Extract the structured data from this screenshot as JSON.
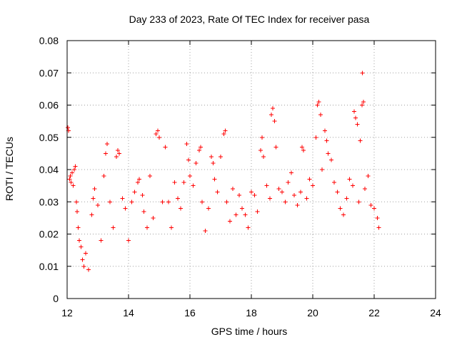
{
  "chart_data": {
    "type": "scatter",
    "title": "Day 233 of 2023, Rate Of TEC Index for receiver pasa",
    "xlabel": "GPS time / hours",
    "ylabel": "ROTI / TECUs",
    "xlim": [
      12,
      24
    ],
    "ylim": [
      0,
      0.08
    ],
    "x_ticks": [
      12,
      14,
      16,
      18,
      20,
      22,
      24
    ],
    "x_tick_labels": [
      "12",
      "14",
      "16",
      "18",
      "20",
      "22",
      "24"
    ],
    "y_ticks": [
      0,
      0.01,
      0.02,
      0.03,
      0.04,
      0.05,
      0.06,
      0.07,
      0.08
    ],
    "y_tick_labels": [
      "0",
      "0.01",
      "0.02",
      "0.03",
      "0.04",
      "0.05",
      "0.06",
      "0.07",
      "0.08"
    ],
    "grid": true,
    "marker": "plus",
    "color": "#ff0000",
    "series": [
      {
        "points": [
          [
            12.02,
            0.053
          ],
          [
            12.05,
            0.052
          ],
          [
            12.08,
            0.037
          ],
          [
            12.1,
            0.038
          ],
          [
            12.13,
            0.036
          ],
          [
            12.16,
            0.039
          ],
          [
            12.2,
            0.035
          ],
          [
            12.23,
            0.04
          ],
          [
            12.27,
            0.041
          ],
          [
            12.3,
            0.03
          ],
          [
            12.33,
            0.027
          ],
          [
            12.36,
            0.022
          ],
          [
            12.4,
            0.018
          ],
          [
            12.45,
            0.016
          ],
          [
            12.5,
            0.012
          ],
          [
            12.55,
            0.01
          ],
          [
            12.6,
            0.014
          ],
          [
            12.7,
            0.009
          ],
          [
            12.8,
            0.026
          ],
          [
            12.85,
            0.031
          ],
          [
            12.9,
            0.034
          ],
          [
            13.0,
            0.029
          ],
          [
            13.1,
            0.018
          ],
          [
            13.2,
            0.038
          ],
          [
            13.25,
            0.045
          ],
          [
            13.3,
            0.048
          ],
          [
            13.4,
            0.03
          ],
          [
            13.5,
            0.022
          ],
          [
            13.6,
            0.044
          ],
          [
            13.65,
            0.046
          ],
          [
            13.7,
            0.045
          ],
          [
            13.8,
            0.031
          ],
          [
            13.9,
            0.028
          ],
          [
            14.0,
            0.018
          ],
          [
            14.1,
            0.03
          ],
          [
            14.2,
            0.033
          ],
          [
            14.3,
            0.036
          ],
          [
            14.35,
            0.037
          ],
          [
            14.45,
            0.032
          ],
          [
            14.5,
            0.027
          ],
          [
            14.6,
            0.022
          ],
          [
            14.7,
            0.038
          ],
          [
            14.8,
            0.025
          ],
          [
            14.9,
            0.051
          ],
          [
            14.95,
            0.052
          ],
          [
            15.0,
            0.05
          ],
          [
            15.1,
            0.03
          ],
          [
            15.2,
            0.047
          ],
          [
            15.3,
            0.03
          ],
          [
            15.4,
            0.022
          ],
          [
            15.5,
            0.036
          ],
          [
            15.6,
            0.031
          ],
          [
            15.7,
            0.028
          ],
          [
            15.8,
            0.036
          ],
          [
            15.9,
            0.048
          ],
          [
            15.95,
            0.043
          ],
          [
            16.0,
            0.038
          ],
          [
            16.1,
            0.035
          ],
          [
            16.2,
            0.042
          ],
          [
            16.3,
            0.046
          ],
          [
            16.35,
            0.047
          ],
          [
            16.4,
            0.03
          ],
          [
            16.5,
            0.021
          ],
          [
            16.6,
            0.028
          ],
          [
            16.7,
            0.044
          ],
          [
            16.75,
            0.042
          ],
          [
            16.8,
            0.037
          ],
          [
            16.9,
            0.033
          ],
          [
            17.0,
            0.044
          ],
          [
            17.1,
            0.051
          ],
          [
            17.15,
            0.052
          ],
          [
            17.2,
            0.03
          ],
          [
            17.3,
            0.024
          ],
          [
            17.4,
            0.034
          ],
          [
            17.5,
            0.026
          ],
          [
            17.6,
            0.032
          ],
          [
            17.7,
            0.028
          ],
          [
            17.8,
            0.026
          ],
          [
            17.9,
            0.022
          ],
          [
            18.0,
            0.033
          ],
          [
            18.1,
            0.032
          ],
          [
            18.2,
            0.027
          ],
          [
            18.3,
            0.046
          ],
          [
            18.35,
            0.05
          ],
          [
            18.4,
            0.044
          ],
          [
            18.5,
            0.035
          ],
          [
            18.6,
            0.031
          ],
          [
            18.65,
            0.057
          ],
          [
            18.7,
            0.059
          ],
          [
            18.75,
            0.055
          ],
          [
            18.8,
            0.047
          ],
          [
            18.9,
            0.034
          ],
          [
            19.0,
            0.033
          ],
          [
            19.1,
            0.03
          ],
          [
            19.2,
            0.036
          ],
          [
            19.3,
            0.039
          ],
          [
            19.4,
            0.032
          ],
          [
            19.5,
            0.029
          ],
          [
            19.6,
            0.033
          ],
          [
            19.65,
            0.047
          ],
          [
            19.7,
            0.046
          ],
          [
            19.8,
            0.031
          ],
          [
            19.9,
            0.037
          ],
          [
            20.0,
            0.035
          ],
          [
            20.1,
            0.05
          ],
          [
            20.15,
            0.06
          ],
          [
            20.2,
            0.061
          ],
          [
            20.25,
            0.057
          ],
          [
            20.3,
            0.04
          ],
          [
            20.4,
            0.052
          ],
          [
            20.45,
            0.049
          ],
          [
            20.5,
            0.045
          ],
          [
            20.6,
            0.043
          ],
          [
            20.7,
            0.036
          ],
          [
            20.8,
            0.033
          ],
          [
            20.9,
            0.028
          ],
          [
            21.0,
            0.026
          ],
          [
            21.1,
            0.031
          ],
          [
            21.2,
            0.037
          ],
          [
            21.3,
            0.035
          ],
          [
            21.35,
            0.058
          ],
          [
            21.4,
            0.056
          ],
          [
            21.45,
            0.054
          ],
          [
            21.5,
            0.03
          ],
          [
            21.55,
            0.049
          ],
          [
            21.6,
            0.06
          ],
          [
            21.62,
            0.07
          ],
          [
            21.65,
            0.061
          ],
          [
            21.7,
            0.034
          ],
          [
            21.8,
            0.038
          ],
          [
            21.9,
            0.029
          ],
          [
            22.0,
            0.028
          ],
          [
            22.1,
            0.025
          ],
          [
            22.15,
            0.022
          ]
        ]
      }
    ]
  }
}
